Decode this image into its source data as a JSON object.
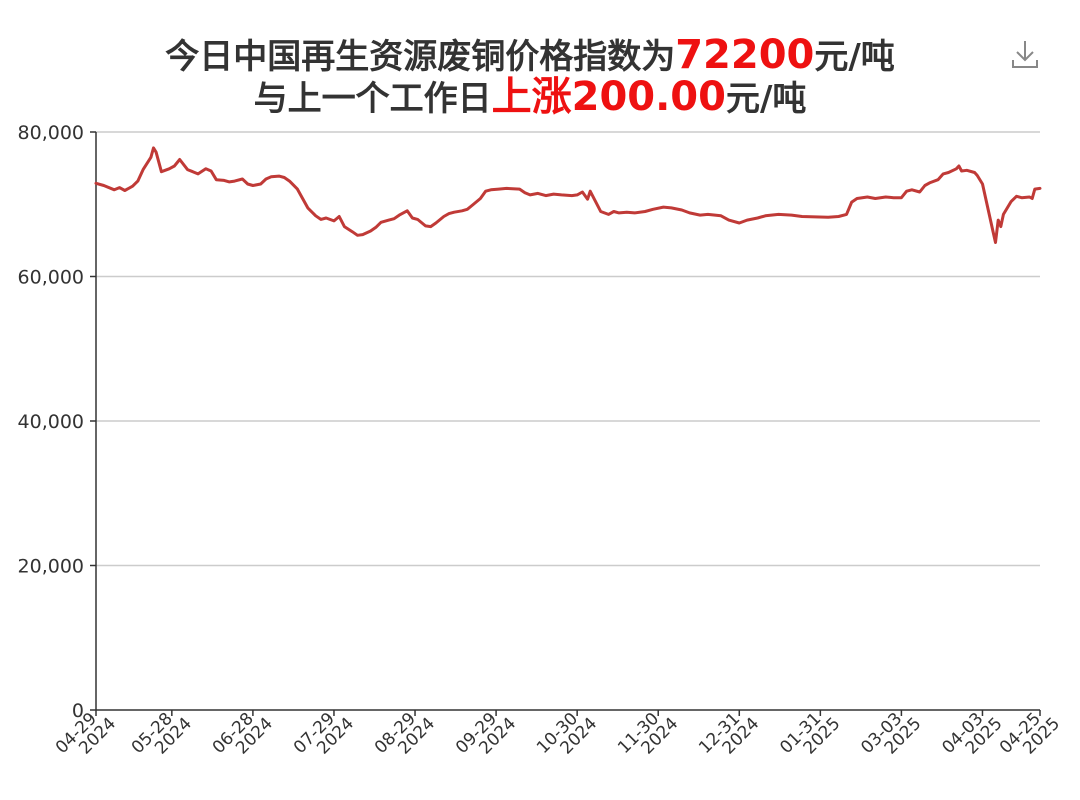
{
  "title": {
    "line1_prefix": "今日中国再生资源废铜价格指数为",
    "line1_value": "72200",
    "line1_unit": "元/吨",
    "line2_prefix": "与上一个工作日",
    "line2_change": "上涨200.00",
    "line2_unit": "元/吨"
  },
  "toolbar": {
    "download_icon": "download-icon"
  },
  "colors": {
    "line": "#c03a37",
    "highlight": "#ee1111",
    "grid": "#cccccc",
    "axis": "#333333",
    "text": "#333333"
  },
  "chart_data": {
    "type": "line",
    "title": "今日中国再生资源废铜价格指数为72200元/吨 与上一个工作日上涨200.00元/吨",
    "xlabel": "",
    "ylabel": "",
    "ylim": [
      0,
      80000
    ],
    "yticks": [
      {
        "value": 0,
        "label": "0"
      },
      {
        "value": 20000,
        "label": "20,000"
      },
      {
        "value": 40000,
        "label": "40,000"
      },
      {
        "value": 60000,
        "label": "60,000"
      },
      {
        "value": 80000,
        "label": "80,000"
      }
    ],
    "xlim": [
      "2024-04-29",
      "2025-04-25"
    ],
    "xticks": [
      {
        "date": "2024-04-29",
        "line1": "04-29",
        "line2": "2024"
      },
      {
        "date": "2024-05-28",
        "line1": "05-28",
        "line2": "2024"
      },
      {
        "date": "2024-06-28",
        "line1": "06-28",
        "line2": "2024"
      },
      {
        "date": "2024-07-29",
        "line1": "07-29",
        "line2": "2024"
      },
      {
        "date": "2024-08-29",
        "line1": "08-29",
        "line2": "2024"
      },
      {
        "date": "2024-09-29",
        "line1": "09-29",
        "line2": "2024"
      },
      {
        "date": "2024-10-30",
        "line1": "10-30",
        "line2": "2024"
      },
      {
        "date": "2024-11-30",
        "line1": "11-30",
        "line2": "2024"
      },
      {
        "date": "2024-12-31",
        "line1": "12-31",
        "line2": "2024"
      },
      {
        "date": "2025-01-31",
        "line1": "01-31",
        "line2": "2025"
      },
      {
        "date": "2025-03-03",
        "line1": "03-03",
        "line2": "2025"
      },
      {
        "date": "2025-04-03",
        "line1": "04-03",
        "line2": "2025"
      },
      {
        "date": "2025-04-25",
        "line1": "04-25",
        "line2": "2025"
      }
    ],
    "grid": true,
    "legend": "none",
    "series": [
      {
        "points": [
          [
            "2024-04-29",
            72900
          ],
          [
            "2024-05-02",
            72600
          ],
          [
            "2024-05-06",
            72000
          ],
          [
            "2024-05-08",
            72300
          ],
          [
            "2024-05-10",
            71900
          ],
          [
            "2024-05-13",
            72500
          ],
          [
            "2024-05-15",
            73200
          ],
          [
            "2024-05-17",
            74800
          ],
          [
            "2024-05-20",
            76500
          ],
          [
            "2024-05-21",
            77800
          ],
          [
            "2024-05-22",
            77200
          ],
          [
            "2024-05-24",
            74500
          ],
          [
            "2024-05-27",
            74900
          ],
          [
            "2024-05-29",
            75300
          ],
          [
            "2024-05-31",
            76200
          ],
          [
            "2024-06-03",
            74800
          ],
          [
            "2024-06-05",
            74500
          ],
          [
            "2024-06-07",
            74200
          ],
          [
            "2024-06-10",
            74900
          ],
          [
            "2024-06-12",
            74600
          ],
          [
            "2024-06-14",
            73400
          ],
          [
            "2024-06-17",
            73300
          ],
          [
            "2024-06-19",
            73100
          ],
          [
            "2024-06-21",
            73200
          ],
          [
            "2024-06-24",
            73500
          ],
          [
            "2024-06-26",
            72800
          ],
          [
            "2024-06-28",
            72600
          ],
          [
            "2024-07-01",
            72800
          ],
          [
            "2024-07-03",
            73500
          ],
          [
            "2024-07-05",
            73800
          ],
          [
            "2024-07-08",
            73900
          ],
          [
            "2024-07-10",
            73700
          ],
          [
            "2024-07-12",
            73200
          ],
          [
            "2024-07-15",
            72100
          ],
          [
            "2024-07-17",
            70800
          ],
          [
            "2024-07-19",
            69500
          ],
          [
            "2024-07-22",
            68400
          ],
          [
            "2024-07-24",
            67900
          ],
          [
            "2024-07-26",
            68100
          ],
          [
            "2024-07-29",
            67700
          ],
          [
            "2024-07-31",
            68300
          ],
          [
            "2024-08-02",
            66900
          ],
          [
            "2024-08-05",
            66200
          ],
          [
            "2024-08-07",
            65700
          ],
          [
            "2024-08-09",
            65800
          ],
          [
            "2024-08-12",
            66300
          ],
          [
            "2024-08-14",
            66800
          ],
          [
            "2024-08-16",
            67500
          ],
          [
            "2024-08-19",
            67800
          ],
          [
            "2024-08-21",
            68000
          ],
          [
            "2024-08-23",
            68500
          ],
          [
            "2024-08-26",
            69100
          ],
          [
            "2024-08-28",
            68100
          ],
          [
            "2024-08-30",
            67900
          ],
          [
            "2024-09-02",
            67000
          ],
          [
            "2024-09-04",
            66900
          ],
          [
            "2024-09-06",
            67400
          ],
          [
            "2024-09-09",
            68300
          ],
          [
            "2024-09-11",
            68700
          ],
          [
            "2024-09-13",
            68900
          ],
          [
            "2024-09-16",
            69100
          ],
          [
            "2024-09-18",
            69300
          ],
          [
            "2024-09-20",
            69900
          ],
          [
            "2024-09-23",
            70800
          ],
          [
            "2024-09-25",
            71800
          ],
          [
            "2024-09-27",
            72000
          ],
          [
            "2024-09-30",
            72100
          ],
          [
            "2024-10-03",
            72200
          ],
          [
            "2024-10-08",
            72100
          ],
          [
            "2024-10-10",
            71600
          ],
          [
            "2024-10-12",
            71300
          ],
          [
            "2024-10-15",
            71500
          ],
          [
            "2024-10-18",
            71200
          ],
          [
            "2024-10-21",
            71400
          ],
          [
            "2024-10-24",
            71300
          ],
          [
            "2024-10-28",
            71200
          ],
          [
            "2024-10-30",
            71300
          ],
          [
            "2024-11-01",
            71700
          ],
          [
            "2024-11-03",
            70700
          ],
          [
            "2024-11-04",
            71800
          ],
          [
            "2024-11-06",
            70400
          ],
          [
            "2024-11-08",
            69000
          ],
          [
            "2024-11-11",
            68600
          ],
          [
            "2024-11-13",
            69000
          ],
          [
            "2024-11-15",
            68800
          ],
          [
            "2024-11-18",
            68900
          ],
          [
            "2024-11-21",
            68800
          ],
          [
            "2024-11-25",
            69000
          ],
          [
            "2024-11-28",
            69300
          ],
          [
            "2024-12-02",
            69600
          ],
          [
            "2024-12-05",
            69500
          ],
          [
            "2024-12-09",
            69200
          ],
          [
            "2024-12-12",
            68800
          ],
          [
            "2024-12-16",
            68500
          ],
          [
            "2024-12-19",
            68600
          ],
          [
            "2024-12-24",
            68400
          ],
          [
            "2024-12-27",
            67800
          ],
          [
            "2024-12-31",
            67400
          ],
          [
            "2025-01-03",
            67800
          ],
          [
            "2025-01-07",
            68100
          ],
          [
            "2025-01-10",
            68400
          ],
          [
            "2025-01-15",
            68600
          ],
          [
            "2025-01-20",
            68500
          ],
          [
            "2025-01-24",
            68300
          ],
          [
            "2025-02-03",
            68200
          ],
          [
            "2025-02-07",
            68300
          ],
          [
            "2025-02-10",
            68600
          ],
          [
            "2025-02-12",
            70300
          ],
          [
            "2025-02-14",
            70800
          ],
          [
            "2025-02-18",
            71000
          ],
          [
            "2025-02-21",
            70800
          ],
          [
            "2025-02-25",
            71000
          ],
          [
            "2025-02-28",
            70900
          ],
          [
            "2025-03-03",
            70900
          ],
          [
            "2025-03-05",
            71800
          ],
          [
            "2025-03-07",
            72000
          ],
          [
            "2025-03-10",
            71700
          ],
          [
            "2025-03-12",
            72600
          ],
          [
            "2025-03-14",
            73000
          ],
          [
            "2025-03-17",
            73400
          ],
          [
            "2025-03-19",
            74200
          ],
          [
            "2025-03-21",
            74400
          ],
          [
            "2025-03-24",
            74900
          ],
          [
            "2025-03-25",
            75300
          ],
          [
            "2025-03-26",
            74600
          ],
          [
            "2025-03-28",
            74700
          ],
          [
            "2025-03-31",
            74400
          ],
          [
            "2025-04-01",
            74000
          ],
          [
            "2025-04-03",
            72800
          ],
          [
            "2025-04-07",
            66300
          ],
          [
            "2025-04-08",
            64700
          ],
          [
            "2025-04-09",
            67800
          ],
          [
            "2025-04-10",
            66900
          ],
          [
            "2025-04-11",
            68600
          ],
          [
            "2025-04-14",
            70400
          ],
          [
            "2025-04-16",
            71100
          ],
          [
            "2025-04-18",
            70900
          ],
          [
            "2025-04-21",
            71000
          ],
          [
            "2025-04-22",
            70800
          ],
          [
            "2025-04-23",
            72100
          ],
          [
            "2025-04-25",
            72200
          ]
        ]
      }
    ]
  }
}
